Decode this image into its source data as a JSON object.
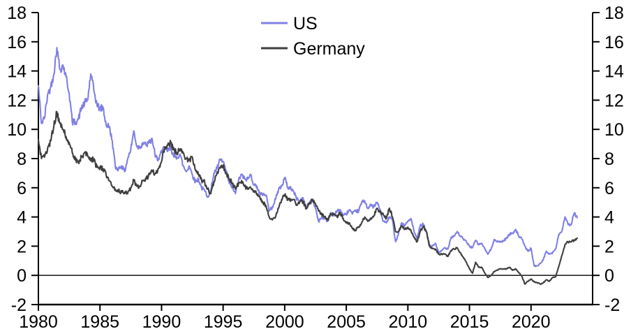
{
  "page": {
    "background": "#FFFFFF",
    "axis_color": "#000000",
    "text_color": "#000000"
  },
  "chart_data": {
    "type": "line",
    "title": "",
    "xlabel": "",
    "ylabel": "",
    "xlim": [
      1980,
      2025
    ],
    "ylim": [
      -2,
      18
    ],
    "x_ticks": [
      1980,
      1985,
      1990,
      1995,
      2000,
      2005,
      2010,
      2015,
      2020
    ],
    "y_ticks": [
      -2,
      0,
      2,
      4,
      6,
      8,
      10,
      12,
      14,
      16,
      18
    ],
    "y_axis_sides": "both",
    "grid": false,
    "zero_line": true,
    "legend_position": "top-center",
    "x_start": 1980,
    "x_step_years": 0.25,
    "series": [
      {
        "name": "US",
        "color": "#8080E6",
        "values": [
          13.0,
          10.4,
          10.8,
          12.4,
          12.9,
          13.8,
          15.6,
          14.1,
          14.4,
          13.6,
          12.5,
          10.5,
          10.5,
          10.7,
          11.5,
          11.8,
          12.0,
          13.8,
          12.7,
          11.7,
          11.4,
          11.5,
          10.3,
          10.2,
          9.2,
          7.4,
          7.3,
          7.5,
          7.1,
          8.0,
          8.6,
          9.9,
          8.8,
          8.8,
          9.1,
          8.9,
          9.1,
          9.3,
          8.1,
          8.0,
          8.4,
          8.8,
          8.5,
          8.8,
          8.1,
          8.1,
          8.3,
          7.5,
          7.1,
          7.5,
          6.9,
          6.4,
          6.6,
          6.0,
          5.8,
          5.4,
          5.8,
          7.0,
          7.3,
          7.9,
          7.8,
          7.1,
          6.3,
          6.0,
          5.6,
          6.5,
          6.9,
          6.6,
          6.6,
          6.9,
          6.2,
          6.1,
          5.5,
          5.6,
          5.5,
          4.4,
          4.7,
          5.2,
          5.9,
          6.1,
          6.7,
          6.0,
          6.0,
          5.7,
          5.2,
          5.1,
          5.3,
          4.6,
          5.0,
          5.2,
          4.6,
          3.7,
          4.0,
          3.9,
          3.7,
          4.3,
          4.1,
          4.4,
          4.5,
          4.1,
          4.2,
          4.5,
          4.2,
          4.4,
          4.4,
          5.0,
          5.1,
          4.6,
          4.8,
          4.7,
          5.0,
          4.5,
          3.7,
          3.6,
          4.0,
          3.8,
          2.3,
          2.9,
          3.6,
          3.4,
          3.7,
          3.9,
          3.0,
          2.5,
          3.4,
          3.5,
          3.0,
          2.1,
          2.0,
          2.2,
          1.5,
          1.7,
          1.9,
          1.8,
          2.6,
          2.7,
          3.0,
          2.7,
          2.5,
          2.3,
          2.0,
          1.9,
          2.4,
          2.1,
          2.2,
          1.8,
          1.45,
          1.8,
          2.45,
          2.3,
          2.3,
          2.35,
          2.55,
          2.8,
          2.9,
          3.15,
          2.7,
          2.5,
          2.0,
          1.65,
          1.85,
          0.65,
          0.65,
          0.8,
          1.1,
          1.65,
          1.45,
          1.55,
          1.8,
          2.8,
          3.0,
          4.0,
          3.5,
          3.45,
          4.25,
          3.95
        ]
      },
      {
        "name": "Germany",
        "color": "#3F3F3F",
        "values": [
          9.3,
          8.0,
          8.1,
          8.7,
          9.2,
          10.2,
          11.2,
          10.4,
          10.0,
          9.5,
          9.1,
          8.4,
          7.9,
          7.7,
          8.1,
          8.4,
          8.2,
          8.0,
          7.9,
          7.4,
          7.4,
          7.3,
          6.9,
          6.5,
          6.1,
          5.9,
          5.8,
          5.7,
          5.7,
          5.6,
          6.0,
          6.5,
          6.1,
          6.1,
          6.5,
          6.6,
          6.9,
          7.1,
          7.0,
          7.3,
          7.8,
          8.8,
          8.9,
          9.1,
          8.6,
          8.4,
          8.6,
          8.4,
          8.0,
          7.9,
          8.1,
          7.2,
          6.9,
          6.5,
          6.4,
          5.9,
          5.6,
          6.4,
          7.0,
          7.4,
          7.5,
          7.0,
          6.6,
          6.3,
          5.9,
          6.3,
          6.5,
          6.1,
          5.9,
          6.0,
          5.8,
          5.6,
          5.3,
          5.0,
          4.7,
          4.0,
          3.8,
          4.0,
          4.6,
          5.2,
          5.5,
          5.2,
          5.2,
          5.2,
          4.8,
          5.1,
          5.0,
          4.6,
          4.9,
          5.2,
          4.9,
          4.4,
          4.2,
          4.0,
          3.8,
          4.2,
          4.2,
          4.0,
          4.3,
          3.9,
          3.6,
          3.6,
          3.2,
          3.1,
          3.3,
          3.6,
          4.0,
          3.7,
          3.9,
          4.1,
          4.6,
          4.3,
          4.2,
          3.9,
          4.6,
          4.0,
          3.0,
          3.0,
          3.4,
          3.2,
          3.3,
          3.1,
          2.6,
          2.3,
          3.0,
          3.35,
          3.0,
          2.0,
          1.85,
          1.8,
          1.45,
          1.45,
          1.45,
          1.3,
          1.7,
          1.8,
          1.9,
          1.55,
          1.25,
          0.9,
          0.45,
          0.15,
          0.9,
          0.55,
          0.55,
          0.15,
          -0.15,
          0.0,
          0.25,
          0.35,
          0.45,
          0.45,
          0.45,
          0.55,
          0.35,
          0.45,
          0.2,
          -0.05,
          -0.6,
          -0.4,
          -0.25,
          -0.45,
          -0.5,
          -0.6,
          -0.5,
          -0.3,
          -0.4,
          -0.15,
          -0.1,
          0.6,
          1.35,
          2.1,
          2.3,
          2.3,
          2.4,
          2.55
        ]
      }
    ]
  }
}
